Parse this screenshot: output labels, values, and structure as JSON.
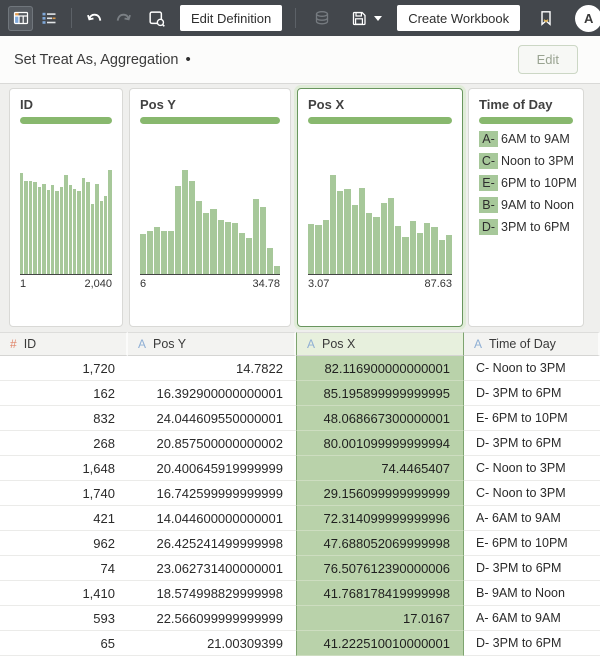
{
  "toolbar": {
    "edit_definition_label": "Edit Definition",
    "create_workbook_label": "Create Workbook",
    "avatar_label": "A"
  },
  "header": {
    "title": "Set Treat As, Aggregation",
    "dot": "•",
    "edit_label": "Edit"
  },
  "colors": {
    "toolbar_bg": "#43474c",
    "accent_green": "#88b86e",
    "hist_bar_green": "#a7c89a",
    "selected_cell_green": "#b9d2aa",
    "selected_border_green": "#7ea46f",
    "numeric_type_orange": "#e08468",
    "text_type_blue": "#8fafd4"
  },
  "cards": [
    {
      "title": "ID",
      "type": "histogram",
      "axis_min": "1",
      "axis_max": "2,040",
      "selected": false,
      "bars": [
        0.95,
        0.88,
        0.88,
        0.87,
        0.82,
        0.85,
        0.79,
        0.84,
        0.78,
        0.82,
        0.93,
        0.84,
        0.8,
        0.78,
        0.91,
        0.87,
        0.66,
        0.85,
        0.69,
        0.74,
        0.98
      ]
    },
    {
      "title": "Pos Y",
      "type": "histogram",
      "axis_min": "6",
      "axis_max": "34.78",
      "selected": false,
      "bars": [
        0.38,
        0.41,
        0.44,
        0.41,
        0.41,
        0.83,
        0.98,
        0.88,
        0.69,
        0.58,
        0.61,
        0.51,
        0.49,
        0.48,
        0.39,
        0.34,
        0.71,
        0.63,
        0.25,
        0.08
      ]
    },
    {
      "title": "Pos X",
      "type": "histogram",
      "axis_min": "3.07",
      "axis_max": "87.63",
      "selected": true,
      "bars": [
        0.47,
        0.46,
        0.51,
        0.93,
        0.78,
        0.8,
        0.65,
        0.81,
        0.58,
        0.54,
        0.67,
        0.72,
        0.45,
        0.35,
        0.5,
        0.39,
        0.48,
        0.44,
        0.32,
        0.37
      ]
    },
    {
      "title": "Time of Day",
      "type": "categories",
      "selected": false,
      "items": [
        {
          "chip": "A-",
          "label": "6AM to 9AM"
        },
        {
          "chip": "C-",
          "label": "Noon to 3PM"
        },
        {
          "chip": "E-",
          "label": "6PM to 10PM"
        },
        {
          "chip": "B-",
          "label": "9AM to Noon"
        },
        {
          "chip": "D-",
          "label": "3PM to 6PM"
        }
      ]
    }
  ],
  "table": {
    "columns": [
      {
        "label": "ID",
        "type_icon": "#",
        "type": "number",
        "align": "right",
        "selected": false
      },
      {
        "label": "Pos Y",
        "type_icon": "A",
        "type": "text",
        "align": "right",
        "selected": false
      },
      {
        "label": "Pos X",
        "type_icon": "A",
        "type": "text",
        "align": "right",
        "selected": true
      },
      {
        "label": "Time of Day",
        "type_icon": "A",
        "type": "text",
        "align": "left",
        "selected": false
      }
    ],
    "rows": [
      [
        "1,720",
        "14.7822",
        "82.116900000000001",
        "C- Noon to 3PM"
      ],
      [
        "162",
        "16.392900000000001",
        "85.195899999999995",
        "D- 3PM to 6PM"
      ],
      [
        "832",
        "24.044609550000001",
        "48.068667300000001",
        "E- 6PM to 10PM"
      ],
      [
        "268",
        "20.857500000000002",
        "80.001099999999994",
        "D- 3PM to 6PM"
      ],
      [
        "1,648",
        "20.400645919999999",
        "74.4465407",
        "C- Noon to 3PM"
      ],
      [
        "1,740",
        "16.742599999999999",
        "29.156099999999999",
        "C- Noon to 3PM"
      ],
      [
        "421",
        "14.044600000000001",
        "72.314099999999996",
        "A- 6AM to 9AM"
      ],
      [
        "962",
        "26.425241499999998",
        "47.688052069999998",
        "E- 6PM to 10PM"
      ],
      [
        "74",
        "23.062731400000001",
        "76.507612390000006",
        "D- 3PM to 6PM"
      ],
      [
        "1,410",
        "18.574998829999998",
        "41.768178419999998",
        "B- 9AM to Noon"
      ],
      [
        "593",
        "22.566099999999999",
        "17.0167",
        "A- 6AM to 9AM"
      ],
      [
        "65",
        "21.00309399",
        "41.222510010000001",
        "D- 3PM to 6PM"
      ]
    ]
  }
}
